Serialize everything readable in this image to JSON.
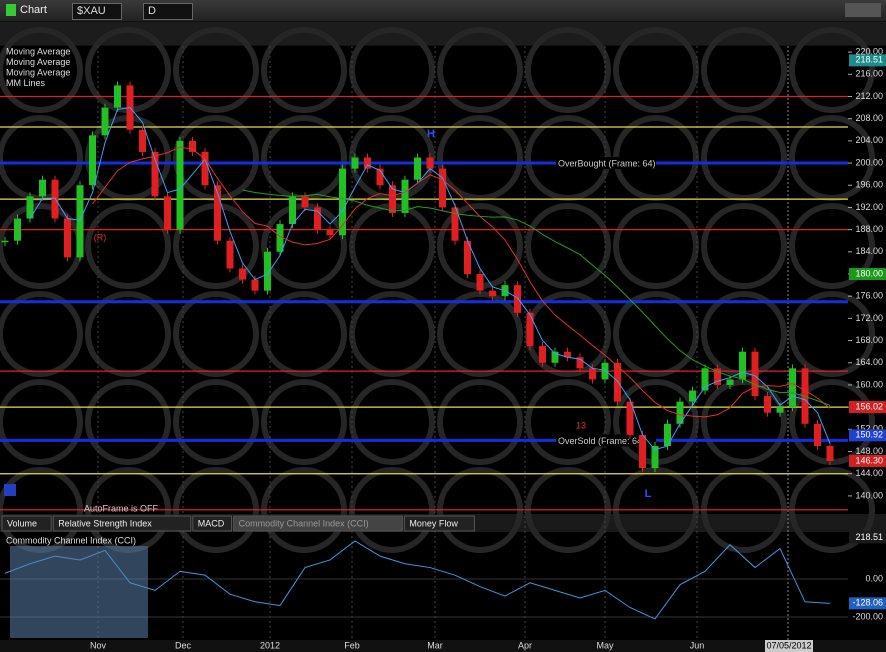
{
  "toolbar": {
    "title": "Chart",
    "symbol": "$XAU",
    "interval": "D"
  },
  "price_panel": {
    "legend": [
      "Moving Average",
      "Moving Average",
      "Moving Average",
      "MM Lines"
    ],
    "ylim": [
      137.1,
      221.1
    ],
    "yticks": [
      {
        "value": 220,
        "label": "220.00"
      },
      {
        "value": 216,
        "label": "216.00"
      },
      {
        "value": 212,
        "label": "212.00"
      },
      {
        "value": 208,
        "label": "208.00"
      },
      {
        "value": 204,
        "label": "204.00"
      },
      {
        "value": 200,
        "label": "200.00"
      },
      {
        "value": 196,
        "label": "196.00"
      },
      {
        "value": 192,
        "label": "192.00"
      },
      {
        "value": 188,
        "label": "188.00"
      },
      {
        "value": 184,
        "label": "184.00"
      },
      {
        "value": 180,
        "label": "180.00"
      },
      {
        "value": 176,
        "label": "176.00"
      },
      {
        "value": 172,
        "label": "172.00"
      },
      {
        "value": 168,
        "label": "168.00"
      },
      {
        "value": 164,
        "label": "164.00"
      },
      {
        "value": 160,
        "label": "160.00"
      },
      {
        "value": 156,
        "label": "156.00"
      },
      {
        "value": 152,
        "label": "152.00"
      },
      {
        "value": 148,
        "label": "148.00"
      },
      {
        "value": 144,
        "label": "144.00"
      },
      {
        "value": 140,
        "label": "140.00"
      }
    ],
    "flags": [
      {
        "value": 218.51,
        "label": "218.51",
        "color": "#1d8c8c"
      },
      {
        "value": 180,
        "label": "180.00",
        "color": "#1a9a1a"
      },
      {
        "value": 156.02,
        "label": "156.02",
        "color": "#d02020"
      },
      {
        "value": 150.92,
        "label": "150.92",
        "color": "#2040d0"
      },
      {
        "value": 146.3,
        "label": "146.30",
        "color": "#d02020"
      }
    ],
    "levels": [
      {
        "value": 212,
        "color": "#e02020"
      },
      {
        "value": 206.5,
        "color": "#e8e040"
      },
      {
        "value": 200,
        "color": "#1030e0",
        "label": "OverBought (Frame: 64)"
      },
      {
        "value": 193.5,
        "color": "#e8e040"
      },
      {
        "value": 188,
        "color": "#e02020"
      },
      {
        "value": 175,
        "color": "#1030e0"
      },
      {
        "value": 162.5,
        "color": "#e02020"
      },
      {
        "value": 156,
        "color": "#e8e040"
      },
      {
        "value": 150,
        "color": "#1030e0",
        "label": "OverSold (Frame: 64)"
      },
      {
        "value": 144,
        "color": "#e8e040"
      },
      {
        "value": 137.5,
        "color": "#e02020"
      }
    ],
    "closes": [
      186,
      190,
      194,
      197,
      190,
      183,
      196,
      205,
      210,
      214,
      206,
      202,
      194,
      188,
      204,
      202,
      196,
      186,
      181,
      179,
      177,
      184,
      189,
      194,
      192,
      188,
      187,
      199,
      201,
      199,
      196,
      191,
      197,
      201,
      199,
      192,
      186,
      180,
      177,
      176,
      178,
      173,
      167,
      164,
      166,
      165,
      163,
      161,
      164,
      157,
      151,
      145,
      149,
      153,
      157,
      159,
      163,
      160,
      161,
      166,
      158,
      155,
      156,
      163,
      153,
      149,
      146.3
    ],
    "up_color": "#22c022",
    "down_color": "#e02020",
    "ma_colors": [
      "#3aa0ff",
      "#e03030",
      "#22a022"
    ],
    "high": "H",
    "low": "L",
    "r": "(R)",
    "count": "13",
    "autoframe": "AutoFrame is OFF"
  },
  "tabs": [
    "Volume",
    "Relative Strength Index",
    "MACD",
    "Commodity Channel Index (CCI)",
    "Money Flow"
  ],
  "cci": {
    "title": "Commodity Channel Index (CCI)",
    "ylim": [
      -321,
      247
    ],
    "yticks": [
      {
        "value": 0,
        "label": "0.00"
      },
      {
        "value": -200,
        "label": "-200.00"
      }
    ],
    "flags": [
      {
        "value": 218.51,
        "label": "218.51"
      },
      {
        "value": -128.06,
        "label": "-128.06"
      }
    ],
    "values": [
      30,
      80,
      120,
      100,
      150,
      -20,
      -60,
      40,
      20,
      -80,
      -120,
      -140,
      60,
      100,
      200,
      120,
      80,
      60,
      20,
      -40,
      -90,
      -20,
      -60,
      -100,
      -60,
      -150,
      -210,
      -30,
      40,
      180,
      60,
      160,
      -120,
      -128.06
    ],
    "color": "#3a9ae0"
  },
  "xaxis": {
    "labels": [
      "Nov",
      "Dec",
      "2012",
      "Feb",
      "Mar",
      "Apr",
      "May",
      "Jun"
    ],
    "cursor": "07/05/2012"
  }
}
